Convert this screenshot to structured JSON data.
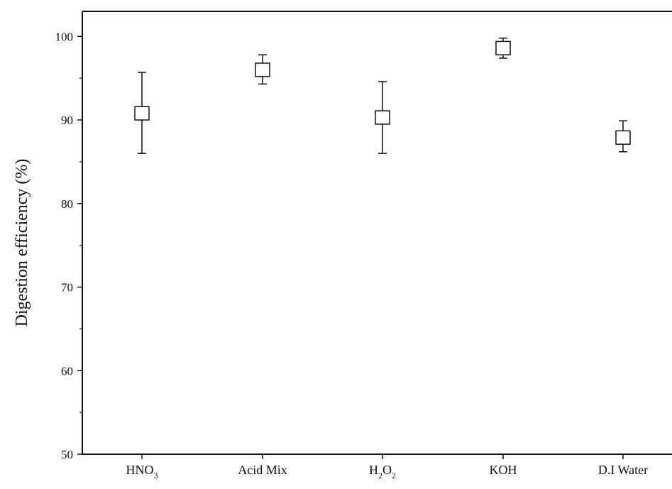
{
  "chart_data": {
    "type": "scatter",
    "title": "",
    "xlabel": "",
    "ylabel": "Digestion efficiency (%)",
    "ylim": [
      50,
      103
    ],
    "yticks": [
      50,
      60,
      70,
      80,
      90,
      100
    ],
    "grid": false,
    "legend": "none",
    "categories": [
      {
        "label": "HNO",
        "sub": "3"
      },
      {
        "label": "Acid Mix",
        "sub": ""
      },
      {
        "label": "H",
        "sub": "2",
        "label2": "O",
        "sub2": "2"
      },
      {
        "label": "KOH",
        "sub": ""
      },
      {
        "label": "D.I Water",
        "sub": ""
      }
    ],
    "series": [
      {
        "values": [
          90.8,
          96.0,
          90.3,
          98.6,
          87.9
        ],
        "error_upper": [
          95.7,
          97.8,
          94.6,
          99.8,
          89.9
        ],
        "error_lower": [
          86.0,
          94.3,
          86.0,
          97.4,
          86.2
        ],
        "box_upper": [
          91.6,
          96.8,
          91.1,
          99.4,
          88.7
        ],
        "box_lower": [
          90.0,
          95.2,
          89.5,
          97.8,
          87.1
        ],
        "marker": "open-square",
        "color": "#111111"
      }
    ]
  }
}
